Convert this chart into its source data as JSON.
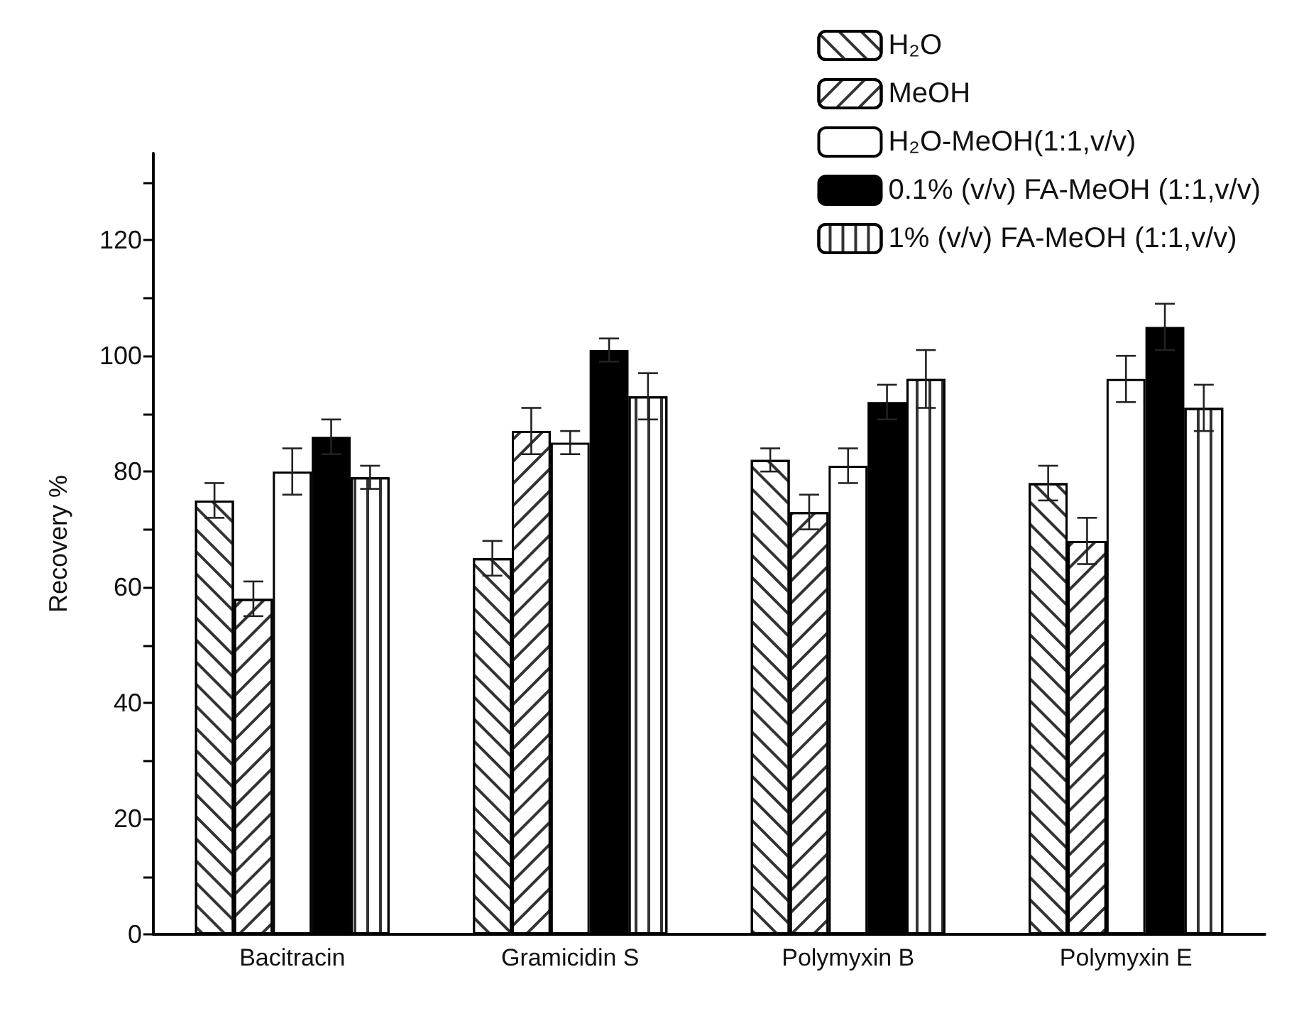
{
  "chart_data": {
    "type": "bar",
    "ylabel": "Recovery %",
    "categories": [
      "Bacitracin",
      "Gramicidin S",
      "Polymyxin B",
      "Polymyxin E"
    ],
    "series": [
      {
        "name": "H₂O",
        "color": "#ffffff",
        "values": [
          75,
          65,
          82,
          78
        ],
        "errors": [
          3,
          3,
          2,
          3
        ]
      },
      {
        "name": "MeOH",
        "color": "#ffffff",
        "values": [
          58,
          87,
          73,
          68
        ],
        "errors": [
          3,
          4,
          3,
          4
        ]
      },
      {
        "name": "H₂O-MeOH(1:1,v/v)",
        "color": "#ffffff",
        "values": [
          80,
          85,
          81,
          96
        ],
        "errors": [
          4,
          2,
          3,
          4
        ]
      },
      {
        "name": "0.1% (v/v) FA-MeOH (1:1,v/v)",
        "color": "#000000",
        "values": [
          86,
          101,
          92,
          105
        ],
        "errors": [
          3,
          2,
          3,
          4
        ]
      },
      {
        "name": "1% (v/v) FA-MeOH (1:1,v/v)",
        "color": "#ffffff",
        "values": [
          79,
          93,
          96,
          91
        ],
        "errors": [
          2,
          4,
          5,
          4
        ]
      }
    ],
    "ylim": [
      0,
      135
    ],
    "yticks": [
      0,
      {
        "value": 10,
        "label": null
      },
      20,
      {
        "value": 30,
        "label": null
      },
      40,
      {
        "value": 50,
        "label": null
      },
      60,
      {
        "value": 70,
        "label": null
      },
      80,
      {
        "value": 90,
        "label": null
      },
      100,
      {
        "value": 110,
        "label": null
      },
      120,
      {
        "value": 130,
        "label": null
      }
    ],
    "grid": false,
    "legend": "top right"
  }
}
